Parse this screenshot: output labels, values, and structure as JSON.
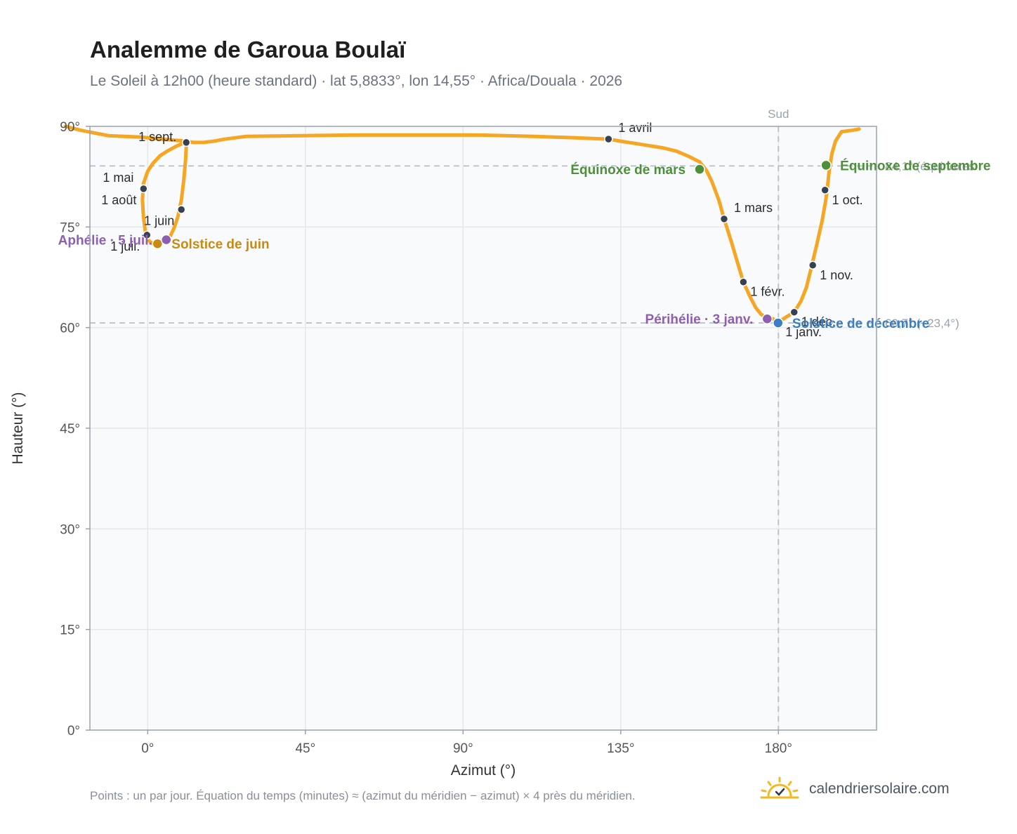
{
  "header": {
    "title": "Analemme de Garoua Boulaï",
    "subtitle": "Le Soleil à 12h00 (heure standard) · lat 5,8833°, lon 14,55° · Africa/Douala · 2026"
  },
  "footer": {
    "note": "Points : un par jour. Équation du temps (minutes) ≈ (azimut du méridien − azimut) × 4 près du méridien.",
    "brand": "calendriersolaire.com",
    "brand_icon": "sun-check-icon"
  },
  "colors": {
    "curve": "#f5a623",
    "month_dot": "#374151",
    "equinox": "#4d8f3a",
    "solstice_june": "#c98a12",
    "solstice_dec": "#3a7fc1",
    "apsis": "#8e5fb0",
    "plot_bg": "#f8fafc",
    "grid": "#e5e7eb",
    "axis": "#9aa3ad"
  },
  "chart_data": {
    "type": "scatter",
    "xlabel": "Azimut (°)",
    "ylabel": "Hauteur (°)",
    "xlim": [
      -16.5,
      208
    ],
    "ylim": [
      0,
      90
    ],
    "xticks": [
      0,
      45,
      90,
      135,
      180
    ],
    "xtick_labels": [
      "0°",
      "45°",
      "90°",
      "135°",
      "180°"
    ],
    "yticks": [
      0,
      15,
      30,
      45,
      60,
      75,
      90
    ],
    "ytick_labels": [
      "0°",
      "15°",
      "30°",
      "45°",
      "60°",
      "75°",
      "90°"
    ],
    "grid": true,
    "meridian": {
      "azimuth": 180,
      "label": "Sud"
    },
    "reference_lines": [
      {
        "altitude": 84.1,
        "label": "84,1° (équinoxes"
      },
      {
        "altitude": 60.7,
        "label": "60,7° (−23,4°)"
      }
    ],
    "curve_path": [
      [
        -23.5,
        90
      ],
      [
        -19,
        89.4
      ],
      [
        -11,
        88.6
      ],
      [
        -2,
        88.4
      ],
      [
        6,
        88.0
      ],
      [
        11,
        87.8
      ],
      [
        13,
        87.6
      ],
      [
        16,
        87.6
      ],
      [
        19,
        87.8
      ],
      [
        22,
        88.1
      ],
      [
        28,
        88.5
      ],
      [
        42,
        88.6
      ],
      [
        58,
        88.7
      ],
      [
        75,
        88.7
      ],
      [
        95,
        88.7
      ],
      [
        110,
        88.5
      ],
      [
        122,
        88.3
      ],
      [
        131.5,
        88.1
      ],
      [
        136,
        87.7
      ],
      [
        141,
        87.3
      ],
      [
        147,
        86.8
      ],
      [
        151,
        86.3
      ],
      [
        154.5,
        85.5
      ],
      [
        157.5,
        84.7
      ],
      [
        159.5,
        83.4
      ],
      [
        161,
        81.8
      ],
      [
        163,
        79.0
      ],
      [
        164.5,
        76.2
      ],
      [
        166.5,
        72.9
      ],
      [
        168.5,
        69.4
      ],
      [
        170.0,
        66.8
      ],
      [
        172.0,
        64.5
      ],
      [
        173.5,
        63.0
      ],
      [
        175.0,
        62.0
      ],
      [
        176.5,
        61.5
      ],
      [
        178.5,
        61.3
      ],
      [
        180.0,
        60.8
      ],
      [
        182.0,
        61.5
      ],
      [
        184.5,
        62.3
      ],
      [
        186.5,
        64.0
      ],
      [
        188.0,
        66.0
      ],
      [
        189.5,
        69.2
      ],
      [
        191.0,
        72.5
      ],
      [
        192.5,
        76.0
      ],
      [
        193.5,
        79.0
      ],
      [
        194.0,
        81.0
      ],
      [
        194.5,
        83.5
      ],
      [
        195.3,
        86.0
      ],
      [
        196.3,
        87.8
      ],
      [
        198.0,
        89.2
      ],
      [
        201,
        89.4
      ],
      [
        203,
        89.6
      ],
      [
        10.6,
        87.6
      ],
      [
        11.0,
        87.0
      ],
      [
        10.8,
        85.0
      ],
      [
        10.3,
        82.0
      ],
      [
        9.6,
        79.0
      ],
      [
        8.6,
        76.5
      ],
      [
        7.5,
        74.8
      ],
      [
        6.5,
        73.7
      ],
      [
        5.3,
        73.1
      ],
      [
        4.0,
        72.7
      ],
      [
        2.8,
        72.5
      ],
      [
        1.5,
        72.5
      ],
      [
        0.2,
        73.0
      ],
      [
        -0.6,
        74.0
      ],
      [
        -1.2,
        76.5
      ],
      [
        -1.5,
        79.0
      ],
      [
        -1.2,
        81.5
      ],
      [
        0.0,
        83.3
      ],
      [
        1.5,
        84.5
      ],
      [
        3.5,
        85.6
      ],
      [
        5.5,
        86.3
      ],
      [
        8.0,
        87.0
      ],
      [
        10.6,
        87.6
      ]
    ],
    "month_points": [
      {
        "label": "1 janv.",
        "az": 180.0,
        "alt": 60.8,
        "label_pos": "below-right"
      },
      {
        "label": "1 févr.",
        "az": 170.0,
        "alt": 66.8,
        "label_pos": "below-right"
      },
      {
        "label": "1 mars",
        "az": 164.5,
        "alt": 76.2,
        "label_pos": "above-right"
      },
      {
        "label": "1 avril",
        "az": 131.5,
        "alt": 88.1,
        "label_pos": "above-right"
      },
      {
        "label": "1 mai",
        "az": -1.2,
        "alt": 80.7,
        "label_pos": "above-left"
      },
      {
        "label": "1 juin",
        "az": 9.6,
        "alt": 77.6,
        "label_pos": "below-left"
      },
      {
        "label": "1 juil.",
        "az": -0.2,
        "alt": 73.8,
        "label_pos": "below-left"
      },
      {
        "label": "1 août",
        "az": -1.2,
        "alt": 80.7,
        "label_pos": "below-left"
      },
      {
        "label": "1 sept.",
        "az": 11.0,
        "alt": 87.6,
        "label_pos": "left"
      },
      {
        "label": "1 oct.",
        "az": 193.3,
        "alt": 80.5,
        "label_pos": "below-right"
      },
      {
        "label": "1 nov.",
        "az": 189.8,
        "alt": 69.3,
        "label_pos": "below-right"
      },
      {
        "label": "1 déc.",
        "az": 184.5,
        "alt": 62.3,
        "label_pos": "below-right"
      }
    ],
    "events": [
      {
        "label": "Équinoxe de mars",
        "az": 157.5,
        "alt": 83.6,
        "color": "#4d8f3a",
        "side": "left"
      },
      {
        "label": "Équinoxe de septembre",
        "az": 193.6,
        "alt": 84.2,
        "color": "#4d8f3a",
        "side": "right"
      },
      {
        "label": "Solstice de juin",
        "az": 2.8,
        "alt": 72.5,
        "color": "#c98a12",
        "side": "right"
      },
      {
        "label": "Solstice de décembre",
        "az": 179.9,
        "alt": 60.7,
        "color": "#3a7fc1",
        "side": "right"
      },
      {
        "label": "Aphélie · 5 juil.",
        "az": 5.3,
        "alt": 73.1,
        "color": "#8e5fb0",
        "side": "left"
      },
      {
        "label": "Périhélie · 3 janv.",
        "az": 176.8,
        "alt": 61.3,
        "color": "#8e5fb0",
        "side": "left"
      }
    ]
  }
}
